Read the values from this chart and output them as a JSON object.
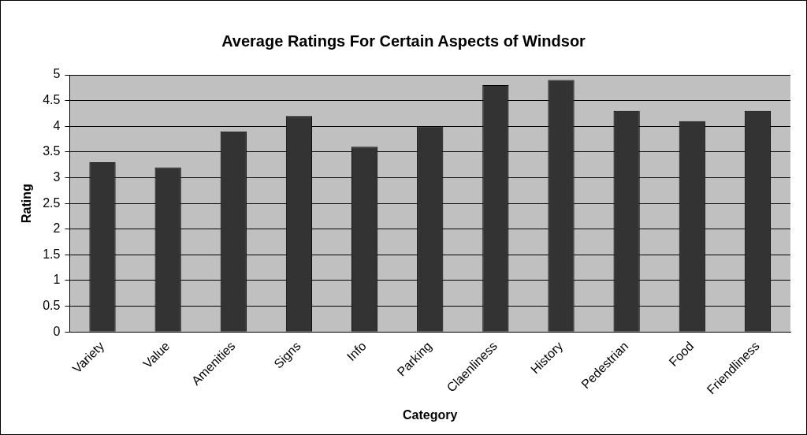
{
  "chart_data": {
    "type": "bar",
    "title": "Average Ratings For Certain Aspects of Windsor",
    "xlabel": "Category",
    "ylabel": "Rating",
    "categories": [
      "Variety",
      "Value",
      "Amenities",
      "Signs",
      "Info",
      "Parking",
      "Claenliness",
      "History",
      "Pedestrian",
      "Food",
      "Friendliness"
    ],
    "values": [
      3.3,
      3.2,
      3.9,
      4.2,
      3.6,
      4.0,
      4.8,
      4.9,
      4.3,
      4.1,
      4.3
    ],
    "color": "#333333",
    "ylim": [
      0,
      5
    ],
    "yticks": [
      0,
      0.5,
      1,
      1.5,
      2,
      2.5,
      3,
      3.5,
      4,
      4.5,
      5
    ],
    "grid": "y",
    "legend": false
  }
}
